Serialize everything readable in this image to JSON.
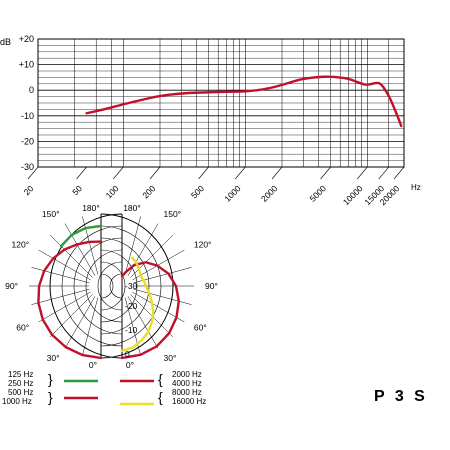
{
  "chart_data": [
    {
      "type": "line",
      "title": "",
      "y_unit_label": "dB",
      "x_unit_label": "Hz",
      "xscale": "log",
      "xlim": [
        20,
        20000
      ],
      "ylim": [
        -30,
        20
      ],
      "x_tick_labels": [
        "20",
        "50",
        "100",
        "200",
        "500",
        "1000",
        "2000",
        "5000",
        "10000",
        "15000",
        "20000"
      ],
      "y_tick_labels": [
        "+20",
        "+10",
        "0",
        "-10",
        "-20",
        "-30"
      ],
      "grid": true,
      "series": [
        {
          "color": "#c0112b",
          "x": [
            50,
            70,
            100,
            150,
            200,
            300,
            500,
            700,
            1000,
            1500,
            2000,
            2500,
            3000,
            4000,
            5000,
            6000,
            7000,
            8000,
            9000,
            10000,
            12000,
            13000,
            15000,
            17000,
            19000
          ],
          "y": [
            -9,
            -7.5,
            -5.5,
            -3.5,
            -2.2,
            -1.2,
            -0.8,
            -0.6,
            -0.6,
            0.5,
            2,
            3.5,
            4.5,
            5.2,
            5.3,
            5,
            4.5,
            3.5,
            2.5,
            2,
            3,
            2.5,
            -2,
            -8,
            -14
          ]
        }
      ]
    },
    {
      "type": "polar",
      "angle_labels": [
        "0°",
        "30°",
        "60°",
        "90°",
        "120°",
        "150°",
        "180°"
      ],
      "radial_labels": [
        "0",
        "-10",
        "-20",
        "-30"
      ],
      "rlim": [
        -30,
        0
      ],
      "legend_left": [
        {
          "label": "125 Hz"
        },
        {
          "label": "250 Hz",
          "color": "#2a9d3a"
        },
        {
          "label": "500 Hz"
        },
        {
          "label": "1000 Hz",
          "color": "#c0112b"
        }
      ],
      "legend_right": [
        {
          "label": "2000 Hz"
        },
        {
          "label": "4000 Hz",
          "color": "#c0112b"
        },
        {
          "label": "8000 Hz"
        },
        {
          "label": "16000 Hz",
          "color": "#e8e020"
        }
      ],
      "series": [
        {
          "side": "left",
          "color": "#c0112b",
          "angles": [
            0,
            15,
            30,
            45,
            60,
            75,
            90,
            105,
            120,
            135,
            150,
            165,
            180
          ],
          "r_db": [
            0,
            -0.2,
            -0.6,
            -1.2,
            -2,
            -3,
            -4.2,
            -5.5,
            -7,
            -8.5,
            -10,
            -11,
            -11.5
          ]
        },
        {
          "side": "left",
          "color": "#2a9d3a",
          "angles": [
            135,
            150,
            165,
            180
          ],
          "r_db": [
            -6.5,
            -5.5,
            -5,
            -5
          ]
        },
        {
          "side": "right",
          "color": "#c0112b",
          "angles": [
            0,
            15,
            30,
            45,
            60,
            75,
            90,
            105,
            120,
            135,
            150,
            165,
            180
          ],
          "r_db": [
            0,
            -0.3,
            -1,
            -2.2,
            -3.8,
            -5.5,
            -7.5,
            -10,
            -13,
            -16,
            -20,
            -24,
            -26
          ]
        },
        {
          "side": "right",
          "color": "#e8e020",
          "angles": [
            0,
            10,
            20,
            30,
            40,
            50,
            60,
            70,
            80,
            90,
            100,
            110,
            120,
            130,
            140,
            150,
            160
          ],
          "r_db": [
            -3,
            -4,
            -6,
            -8,
            -10.5,
            -13,
            -15.5,
            -17.5,
            -19,
            -20,
            -20.5,
            -21,
            -21,
            -20.5,
            -19.5,
            -18.5,
            -17.5
          ]
        }
      ]
    }
  ],
  "model_label": "P 3 S"
}
